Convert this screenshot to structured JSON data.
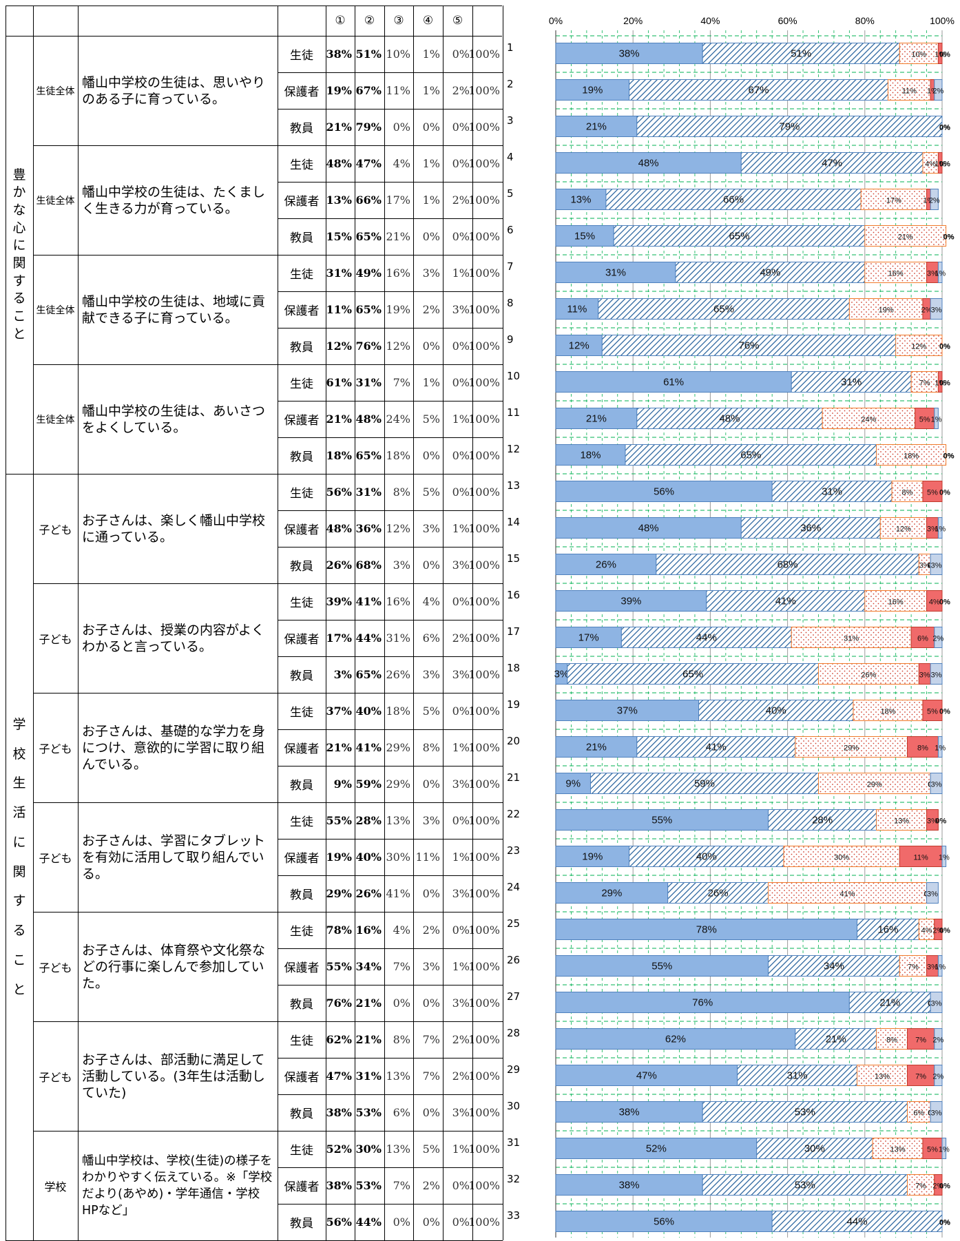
{
  "header": {
    "choices": [
      "①",
      "②",
      "③",
      "④",
      "⑤"
    ]
  },
  "sections": [
    {
      "name": "豊かな心に関すること",
      "chars": [
        "豊",
        "か",
        "な",
        "心",
        "に",
        "関",
        "す",
        "る",
        "こ",
        "と"
      ]
    },
    {
      "name": "学校生活に関すること",
      "chars": [
        "学",
        "校",
        "生",
        "活",
        "に",
        "関",
        "す",
        "る",
        "こ",
        "と"
      ]
    }
  ],
  "total_label": "100%",
  "questions": [
    {
      "group": "生徒全体",
      "text": "幡山中学校の生徒は、思いやりのある子に育っている。"
    },
    {
      "group": "生徒全体",
      "text": "幡山中学校の生徒は、たくましく生きる力が育っている。"
    },
    {
      "group": "生徒全体",
      "text": "幡山中学校の生徒は、地域に貢献できる子に育っている。"
    },
    {
      "group": "生徒全体",
      "text": "幡山中学校の生徒は、あいさつをよくしている。"
    },
    {
      "group": "子ども",
      "text": "お子さんは、楽しく幡山中学校に通っている。"
    },
    {
      "group": "子ども",
      "text": "お子さんは、授業の内容がよくわかると言っている。"
    },
    {
      "group": "子ども",
      "text": "お子さんは、基礎的な学力を身につけ、意欲的に学習に取り組んでいる。"
    },
    {
      "group": "子ども",
      "text": "お子さんは、学習にタブレットを有効に活用して取り組んでいる。"
    },
    {
      "group": "子ども",
      "text": "お子さんは、体育祭や文化祭などの行事に楽しんで参加していた。"
    },
    {
      "group": "子ども",
      "text": "お子さんは、部活動に満足して活動している。(3年生は活動していた)"
    },
    {
      "group": "学校",
      "text": "幡山中学校は、学校(生徒)の様子をわかりやすく伝えている。※「学校だより(あやめ)・学年通信・学校HPなど」"
    }
  ],
  "chart_data": {
    "type": "bar",
    "orientation": "horizontal-stacked-100",
    "xlim": [
      0,
      100
    ],
    "x_ticks": [
      "0%",
      "20%",
      "40%",
      "60%",
      "80%",
      "100%"
    ],
    "categories": [
      "1",
      "2",
      "3",
      "4",
      "5",
      "6",
      "7",
      "8",
      "9",
      "10",
      "11",
      "12",
      "13",
      "14",
      "15",
      "16",
      "17",
      "18",
      "19",
      "20",
      "21",
      "22",
      "23",
      "24",
      "25",
      "26",
      "27",
      "28",
      "29",
      "30",
      "31",
      "32",
      "33"
    ],
    "respondents": [
      "生徒",
      "保護者",
      "教員",
      "生徒",
      "保護者",
      "教員",
      "生徒",
      "保護者",
      "教員",
      "生徒",
      "保護者",
      "教員",
      "生徒",
      "保護者",
      "教員",
      "生徒",
      "保護者",
      "教員",
      "生徒",
      "保護者",
      "教員",
      "生徒",
      "保護者",
      "教員",
      "生徒",
      "保護者",
      "教員",
      "生徒",
      "保護者",
      "教員",
      "生徒",
      "保護者",
      "教員"
    ],
    "series": [
      {
        "name": "①",
        "color": "#8EB4E3",
        "values": [
          38,
          19,
          21,
          48,
          13,
          15,
          31,
          11,
          12,
          61,
          21,
          18,
          56,
          48,
          26,
          39,
          17,
          3,
          37,
          21,
          9,
          55,
          19,
          29,
          78,
          55,
          76,
          62,
          47,
          38,
          52,
          38,
          56
        ]
      },
      {
        "name": "②",
        "color": "#1F5C99",
        "values": [
          51,
          67,
          79,
          47,
          66,
          65,
          49,
          65,
          76,
          31,
          48,
          65,
          31,
          36,
          68,
          41,
          44,
          65,
          40,
          41,
          59,
          28,
          40,
          26,
          16,
          34,
          21,
          21,
          31,
          53,
          30,
          53,
          44
        ]
      },
      {
        "name": "③",
        "color": "#F07A2A",
        "values": [
          10,
          11,
          0,
          4,
          17,
          21,
          16,
          19,
          12,
          7,
          24,
          18,
          8,
          12,
          3,
          16,
          31,
          26,
          18,
          29,
          29,
          13,
          30,
          41,
          4,
          7,
          0,
          8,
          13,
          6,
          13,
          7,
          0
        ]
      },
      {
        "name": "④",
        "color": "#F06A6A",
        "values": [
          1,
          1,
          0,
          1,
          1,
          0,
          3,
          2,
          0,
          1,
          5,
          0,
          5,
          3,
          0,
          4,
          6,
          3,
          5,
          8,
          0,
          3,
          11,
          0,
          2,
          3,
          0,
          7,
          7,
          0,
          5,
          2,
          0
        ]
      },
      {
        "name": "⑤",
        "color": "#C5D4EA",
        "values": [
          0,
          2,
          0,
          0,
          2,
          0,
          1,
          3,
          0,
          0,
          1,
          0,
          0,
          1,
          3,
          0,
          2,
          3,
          0,
          1,
          3,
          0,
          1,
          3,
          0,
          1,
          3,
          2,
          2,
          3,
          1,
          0,
          0
        ]
      }
    ]
  },
  "colors": {
    "grid": "#00B050",
    "pattern2_line": "#1F5C99",
    "pattern3_dot": "#D04030"
  }
}
